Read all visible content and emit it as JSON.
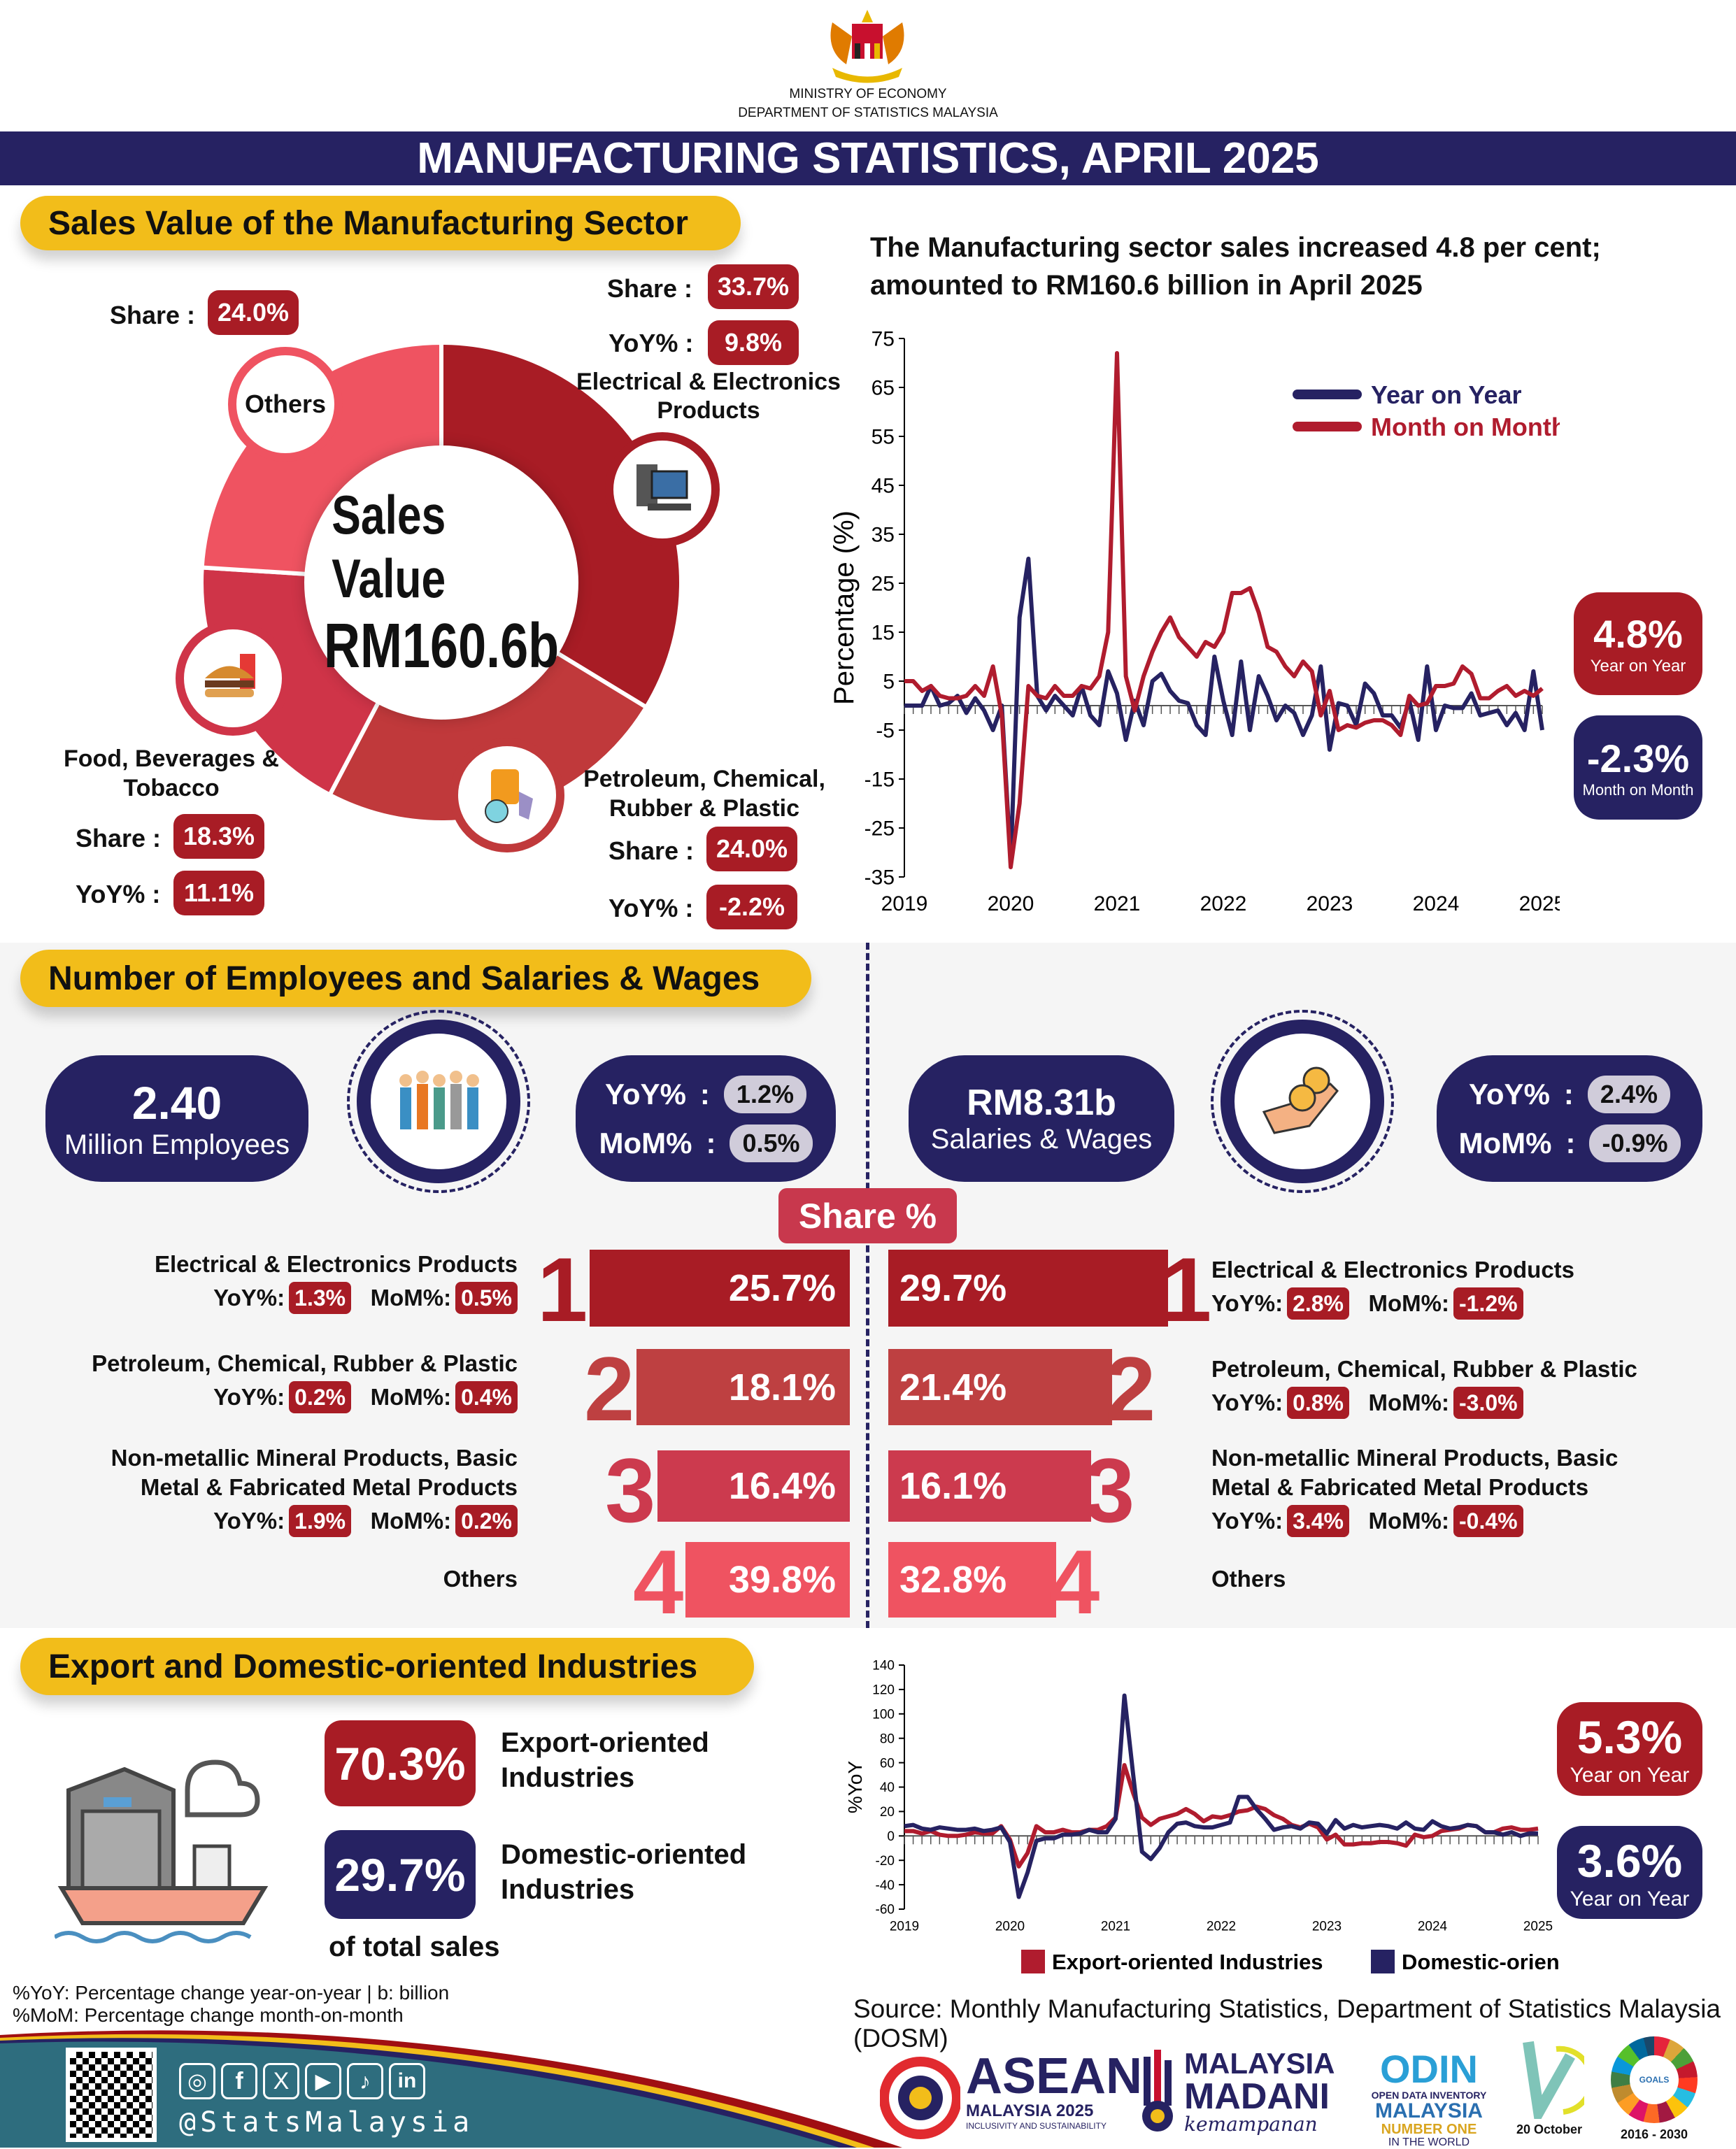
{
  "header": {
    "org1": "MINISTRY OF ECONOMY",
    "org2": "DEPARTMENT OF STATISTICS MALAYSIA",
    "title": "MANUFACTURING STATISTICS, APRIL 2025"
  },
  "sales": {
    "section_title": "Sales Value of the Manufacturing Sector",
    "center_title": "Sales Value",
    "center_value": "RM160.6b",
    "share_label": "Share :",
    "yoy_label": "YoY% :",
    "segments": [
      {
        "name": "Electrical & Electronics Products",
        "share": "33.7%",
        "share_value": 33.7,
        "yoy": "9.8%",
        "color": "#a81c25",
        "icon": "computer-icon"
      },
      {
        "name": "Petroleum, Chemical, Rubber & Plastic",
        "share": "24.0%",
        "share_value": 24.0,
        "yoy": "-2.2%",
        "color": "#c0393b",
        "icon": "chemical-barrel-icon"
      },
      {
        "name": "Food, Beverages & Tobacco",
        "share": "18.3%",
        "share_value": 18.3,
        "yoy": "11.1%",
        "color": "#cf3448",
        "icon": "food-icon"
      },
      {
        "name": "Others",
        "share": "24.0%",
        "share_value": 24.0,
        "color": "#ef5361"
      }
    ],
    "food_line1": "Food, Beverages &",
    "food_line2": "Tobacco",
    "ee_line1": "Electrical & Electronics",
    "ee_line2": "Products",
    "pet_line1": "Petroleum, Chemical,",
    "pet_line2": "Rubber & Plastic",
    "headline1": "The Manufacturing sector sales increased 4.8 per cent;",
    "headline2": "amounted to RM160.6 billion in April 2025",
    "badge_yoy": {
      "value": "4.8%",
      "label": "Year on Year"
    },
    "badge_mom": {
      "value": "-2.3%",
      "label": "Month on Month"
    }
  },
  "chart_data": [
    {
      "type": "line",
      "ylabel": "Percentage (%)",
      "ylim": [
        -35,
        75
      ],
      "yticks": [
        75,
        65,
        55,
        45,
        35,
        25,
        15,
        5,
        -5,
        -15,
        -25,
        -35
      ],
      "xticks": [
        "2019",
        "2020",
        "2021",
        "2022",
        "2023",
        "2024",
        "2025"
      ],
      "x_start": "2019-01",
      "x_end": "2025-01",
      "legend": "top-right",
      "grid": false,
      "series": [
        {
          "name": "Year on Year",
          "color": "#262262",
          "values": [
            0,
            0,
            0,
            4,
            0,
            0.5,
            2,
            -1.5,
            1.5,
            -1,
            -5,
            0,
            -32,
            18,
            30,
            2,
            -1,
            2,
            0,
            -2,
            4,
            -2,
            -4,
            7,
            2.5,
            -7,
            1,
            -4,
            5,
            6.5,
            3,
            1,
            0.5,
            -4,
            -6,
            10,
            1,
            -6,
            9,
            -5,
            6,
            2,
            -3,
            0,
            -1.5,
            -6,
            -2,
            8,
            -9,
            0.5,
            0,
            -4,
            4.5,
            2.5,
            -2,
            -2,
            -4.5,
            1,
            -7,
            8,
            -5,
            0,
            -0.5,
            -0.5,
            2.5,
            -2,
            -1.5,
            -1,
            -4,
            -1.5,
            -5,
            7,
            -5
          ]
        },
        {
          "name": "Month on Month",
          "color": "#b01c2e",
          "values": [
            5,
            5,
            3,
            4,
            2,
            1.5,
            1.5,
            2,
            4,
            2,
            8,
            -2,
            -33,
            -20,
            4,
            2,
            1.5,
            4,
            2,
            2,
            4,
            3.5,
            6,
            15,
            72,
            6,
            -1,
            6,
            11,
            15,
            18,
            14,
            12,
            10,
            13,
            12,
            15,
            23,
            23,
            24,
            19,
            12,
            11,
            8,
            6,
            9,
            7,
            -2,
            3,
            -5,
            -4,
            -4.5,
            -3.5,
            -3,
            -3,
            -4,
            -6,
            2,
            0,
            0.5,
            4,
            4,
            4.5,
            8,
            6.5,
            1.5,
            1.5,
            3,
            4,
            2,
            3,
            2,
            3.5
          ]
        }
      ]
    },
    {
      "type": "line",
      "ylabel": "%YoY",
      "ylim": [
        -60,
        140
      ],
      "yticks": [
        140,
        120,
        100,
        80,
        60,
        40,
        20,
        0,
        -20,
        -40,
        -60
      ],
      "xticks": [
        "2019",
        "2020",
        "2021",
        "2022",
        "2023",
        "2024",
        "2025"
      ],
      "x_start": "2019-01",
      "x_end": "2025-01",
      "legend": "bottom",
      "grid": false,
      "series": [
        {
          "name": "Export-oriented Industries",
          "color": "#b01c2e",
          "values": [
            4,
            4,
            2,
            4,
            1,
            0,
            0,
            1,
            3,
            2,
            2,
            8,
            -3,
            -25,
            -14,
            8,
            3,
            3,
            5,
            3,
            3,
            5,
            5,
            8,
            15,
            58,
            35,
            15,
            9,
            14,
            16,
            18,
            22,
            18,
            12,
            16,
            15,
            17,
            20,
            21,
            24,
            22,
            17,
            14,
            9,
            7,
            10,
            7,
            -3,
            1,
            -7,
            -7,
            -6,
            -6,
            -5,
            -5,
            -6,
            -8,
            1,
            -1,
            0,
            4,
            5,
            6,
            9,
            8,
            3,
            3,
            6,
            7,
            5,
            5,
            6
          ]
        },
        {
          "name": "Domestic-oriented Industries",
          "color": "#262262",
          "values": [
            8,
            9,
            6,
            5,
            7,
            6,
            5,
            5,
            6,
            4,
            5,
            7,
            -5,
            -50,
            -30,
            -4,
            -2,
            -2,
            1,
            1,
            2,
            5,
            3,
            3,
            14,
            115,
            50,
            -13,
            -19,
            -10,
            3,
            10,
            11,
            8,
            7,
            7,
            9,
            11,
            32,
            32,
            22,
            14,
            5,
            7,
            8,
            6,
            11,
            10,
            2,
            13,
            6,
            9,
            7,
            8,
            9,
            8,
            6,
            11,
            6,
            5,
            12,
            8,
            6,
            7,
            9,
            8,
            3,
            3,
            1,
            3,
            0,
            2,
            2
          ]
        }
      ]
    }
  ],
  "employees": {
    "section_title": "Number of Employees and Salaries & Wages",
    "emp_value": "2.40",
    "emp_label": "Million Employees",
    "emp_yoy": "1.2%",
    "emp_mom": "0.5%",
    "sal_value": "RM8.31b",
    "sal_label": "Salaries & Wages",
    "sal_yoy": "2.4%",
    "sal_mom": "-0.9%",
    "yoy_label": "YoY%",
    "mom_label": "MoM%",
    "colon": ":",
    "share_tag": "Share %",
    "row_yoy": "YoY%:",
    "row_mom": "MoM%:",
    "rows": [
      {
        "rank": "1",
        "name": "Electrical & Electronics Products",
        "emp_share": "25.7%",
        "emp_yoy": "1.3%",
        "emp_mom": "0.5%",
        "sal_share": "29.7%",
        "sal_yoy": "2.8%",
        "sal_mom": "-1.2%",
        "color": "#a81c25"
      },
      {
        "rank": "2",
        "name": "Petroleum, Chemical, Rubber & Plastic",
        "emp_share": "18.1%",
        "emp_yoy": "0.2%",
        "emp_mom": "0.4%",
        "sal_share": "21.4%",
        "sal_yoy": "0.8%",
        "sal_mom": "-3.0%",
        "color": "#be4041"
      },
      {
        "rank": "3",
        "name1": "Non-metallic Mineral Products, Basic",
        "name2": "Metal & Fabricated Metal Products",
        "emp_share": "16.4%",
        "emp_yoy": "1.9%",
        "emp_mom": "0.2%",
        "sal_share": "16.1%",
        "sal_yoy": "3.4%",
        "sal_mom": "-0.4%",
        "color": "#cc3a4e"
      },
      {
        "rank": "4",
        "name": "Others",
        "emp_share": "39.8%",
        "sal_share": "32.8%",
        "color": "#ef5361"
      }
    ]
  },
  "export": {
    "section_title": "Export and Domestic-oriented Industries",
    "export_share": "70.3%",
    "export_l1": "Export-oriented",
    "export_l2": "Industries",
    "domestic_share": "29.7%",
    "domestic_l1": "Domestic-oriented",
    "domestic_l2": "Industries",
    "of_total": "of total sales",
    "badge_export": {
      "value": "5.3%",
      "label": "Year on Year"
    },
    "badge_domestic": {
      "value": "3.6%",
      "label": "Year on Year"
    }
  },
  "footer": {
    "note1": "%YoY: Percentage change year-on-year | b: billion",
    "note2": "%MoM: Percentage change month-on-month",
    "source": "Source: Monthly Manufacturing Statistics, Department of Statistics Malaysia (DOSM)",
    "handle": "@StatsMalaysia",
    "logos": {
      "asean": "ASEAN",
      "asean_sub": "MALAYSIA 2025",
      "asean_tag": "INCLUSIVITY AND SUSTAINABILITY",
      "madani1": "MALAYSIA",
      "madani2": "MADANI",
      "madani_tag": "kemampanan",
      "odin": "ODIN",
      "odin_sub": "OPEN DATA INVENTORY",
      "odin_m": "MALAYSIA",
      "odin_n": "NUMBER ONE",
      "odin_w": "IN THE WORLD",
      "stats_day": "20 October",
      "sdg": "2016 - 2030",
      "sdg_goals": "GOALS"
    },
    "colors": {
      "navy": "#262262",
      "teal": "#2e6d7e",
      "red": "#a81c25",
      "yellow": "#f2bd1a"
    }
  }
}
